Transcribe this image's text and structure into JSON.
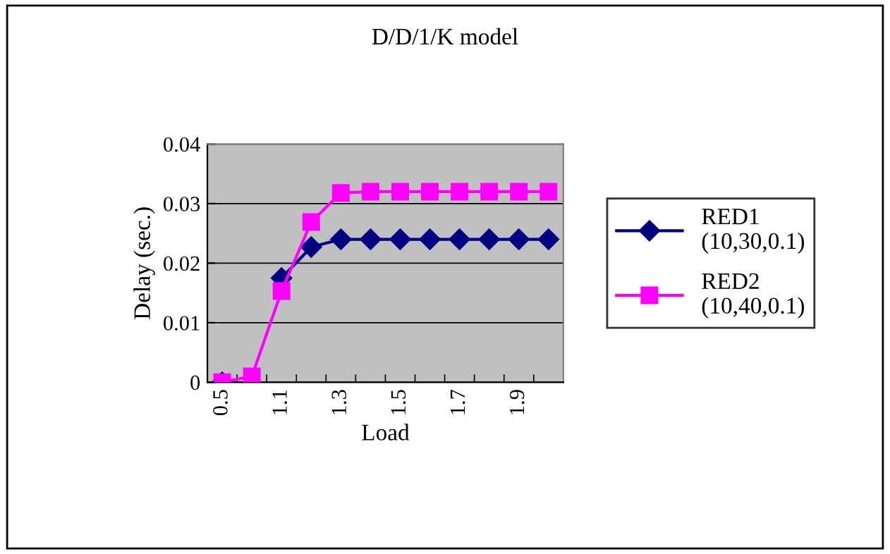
{
  "chart_data": {
    "type": "line",
    "title": "D/D/1/K model",
    "xlabel": "Load",
    "ylabel": "Delay (sec.)",
    "categories": [
      "0.5",
      null,
      "1.1",
      null,
      "1.3",
      null,
      "1.5",
      null,
      "1.7",
      null,
      "1.9",
      null
    ],
    "series": [
      {
        "name": "RED1\n(10,30,0.1)",
        "color": "#000080",
        "marker": "diamond",
        "values": [
          0,
          null,
          0.0175,
          0.0227,
          0.024,
          0.024,
          0.024,
          0.024,
          0.024,
          0.024,
          0.024,
          0.024
        ]
      },
      {
        "name": "RED2\n(10,40,0.1)",
        "color": "#ff00ff",
        "marker": "square",
        "values": [
          0,
          0.001,
          0.0153,
          0.0269,
          0.0318,
          0.032,
          0.032,
          0.032,
          0.032,
          0.032,
          0.032,
          0.032
        ]
      }
    ],
    "ylim": [
      0,
      0.04
    ],
    "yticks": [
      {
        "value": 0,
        "label": "0"
      },
      0.01,
      0.02,
      0.03,
      0.04
    ],
    "grid": "y",
    "legend": "right"
  }
}
